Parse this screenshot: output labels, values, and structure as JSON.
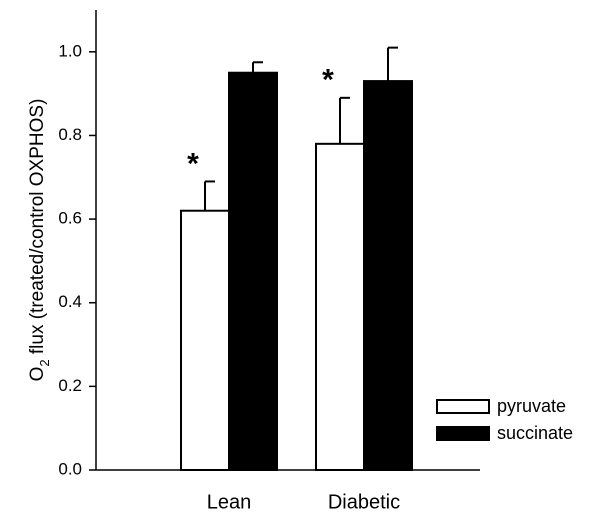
{
  "chart_data": {
    "type": "bar",
    "ylabel": [
      "O",
      "2",
      " flux (treated/control OXPHOS)"
    ],
    "categories": [
      "Lean",
      "Diabetic"
    ],
    "series": [
      {
        "name": "pyruvate",
        "color": "#ffffff",
        "values": [
          0.62,
          0.78
        ],
        "errors": [
          0.07,
          0.11
        ],
        "annotations": [
          "*",
          "*"
        ]
      },
      {
        "name": "succinate",
        "color": "#000000",
        "values": [
          0.95,
          0.93
        ],
        "errors": [
          0.025,
          0.08
        ]
      }
    ],
    "ylim": [
      0,
      1.1
    ],
    "yticks": [
      {
        "value": 0,
        "label": "0.0"
      },
      {
        "value": 0.2,
        "label": "0.2"
      },
      {
        "value": 0.4,
        "label": "0.4"
      },
      {
        "value": 0.6,
        "label": "0.6"
      },
      {
        "value": 0.8,
        "label": "0.8"
      },
      {
        "value": 1.0,
        "label": "1.0"
      }
    ],
    "legend": "lower right"
  }
}
